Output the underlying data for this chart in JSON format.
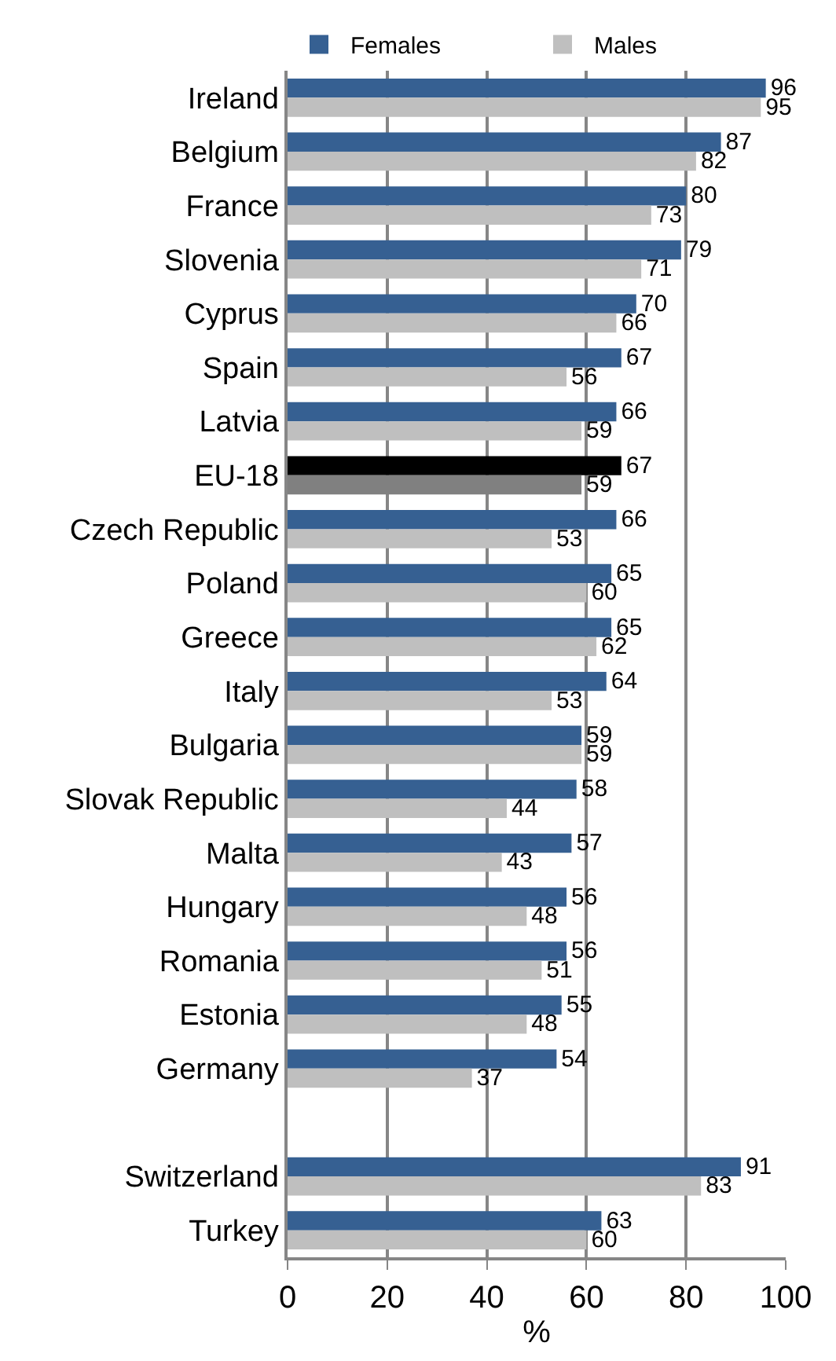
{
  "chart_data": {
    "type": "bar",
    "orientation": "horizontal",
    "categories": [
      "Ireland",
      "Belgium",
      "France",
      "Slovenia",
      "Cyprus",
      "Spain",
      "Latvia",
      "EU-18",
      "Czech Republic",
      "Poland",
      "Greece",
      "Italy",
      "Bulgaria",
      "Slovak Republic",
      "Malta",
      "Hungary",
      "Romania",
      "Estonia",
      "Germany",
      null,
      "Switzerland",
      "Turkey"
    ],
    "series": [
      {
        "name": "Females",
        "color": "#366092",
        "colors": [
          null,
          null,
          null,
          null,
          null,
          null,
          null,
          "#000000",
          null,
          null,
          null,
          null,
          null,
          null,
          null,
          null,
          null,
          null,
          null,
          null,
          null,
          null
        ],
        "values": [
          96,
          87,
          80,
          79,
          70,
          67,
          66,
          67,
          66,
          65,
          65,
          64,
          59,
          58,
          57,
          56,
          56,
          55,
          54,
          null,
          91,
          63
        ]
      },
      {
        "name": "Males",
        "color": "#bfbfbf",
        "colors": [
          null,
          null,
          null,
          null,
          null,
          null,
          null,
          "#808080",
          null,
          null,
          null,
          null,
          null,
          null,
          null,
          null,
          null,
          null,
          null,
          null,
          null,
          null
        ],
        "values": [
          95,
          82,
          73,
          71,
          66,
          56,
          59,
          59,
          53,
          60,
          62,
          53,
          59,
          44,
          43,
          48,
          51,
          48,
          37,
          null,
          83,
          60
        ]
      }
    ],
    "xlabel": "%",
    "xlim": [
      0,
      100
    ],
    "xticks": [
      0,
      20,
      40,
      60,
      80,
      100
    ],
    "grid": "x",
    "legend": "top",
    "data_labels": true
  }
}
